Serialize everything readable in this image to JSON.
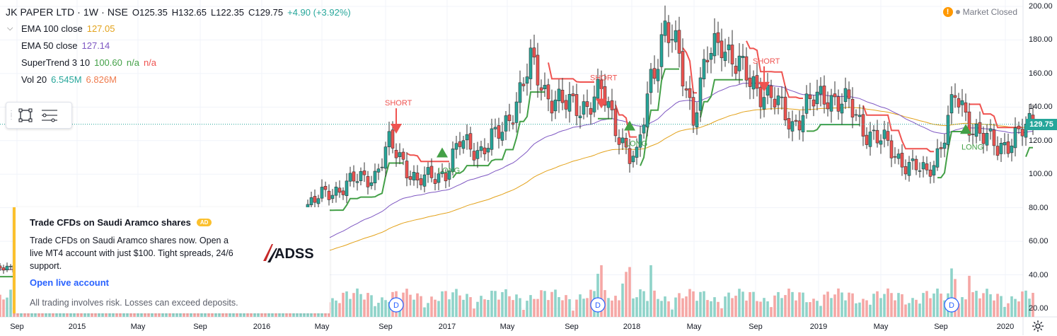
{
  "header": {
    "symbol": "JK PAPER LTD · 1W · NSE",
    "open": "O125.35",
    "high": "H132.65",
    "low": "L122.35",
    "close": "C129.75",
    "change": "+4.90 (+3.92%)"
  },
  "indicators": [
    {
      "name": "EMA 100 close",
      "value": "127.05",
      "value2": "",
      "value3": "",
      "color": "#e3a21a"
    },
    {
      "name": "EMA 50 close",
      "value": "127.14",
      "value2": "",
      "value3": "",
      "color": "#7e57c2"
    },
    {
      "name": "SuperTrend 3 10",
      "value": "100.60",
      "value2": "n/a",
      "value3": "n/a",
      "color": "#43a047"
    },
    {
      "name": "Vol 20",
      "value": "6.545M",
      "value2": "6.826M",
      "value3": "",
      "color": "#26a69a"
    }
  ],
  "market_status": "Market Closed",
  "price_badge": "129.75",
  "ad": {
    "title": "Trade CFDs on Saudi Aramco shares",
    "badge": "AD",
    "body": "Trade CFDs on Saudi Aramco shares now. Open a live MT4 account with just $100. Tight spreads, 24/6 support.",
    "link": "Open live account",
    "disclaimer": "All trading involves risk. Losses can exceed deposits.",
    "logo_text": "ADSS"
  },
  "chart_data": {
    "type": "candlestick",
    "y_axis_ticks": [
      "200.00",
      "180.00",
      "160.00",
      "140.00",
      "120.00",
      "100.00",
      "80.00",
      "60.00",
      "40.00",
      "20.00"
    ],
    "ylim": [
      20,
      200
    ],
    "x_axis_labels": [
      "Sep",
      "2015",
      "May",
      "Sep",
      "2016",
      "May",
      "Sep",
      "2017",
      "May",
      "Sep",
      "2018",
      "May",
      "Sep",
      "2019",
      "May",
      "Sep",
      "2020"
    ],
    "last_close": 129.75,
    "signals": [
      {
        "label": "SHORT",
        "type": "short",
        "week": 114,
        "price": 130
      },
      {
        "label": "LONG",
        "type": "long",
        "week": 127,
        "price": 110
      },
      {
        "label": "SHORT",
        "type": "short",
        "week": 172,
        "price": 145
      },
      {
        "label": "LONG",
        "type": "long",
        "week": 180,
        "price": 126
      },
      {
        "label": "SHORT",
        "type": "short",
        "week": 218,
        "price": 155
      },
      {
        "label": "LONG",
        "type": "long",
        "week": 275,
        "price": 124
      }
    ],
    "dividend_marker": "D",
    "dividend_weeks": [
      86,
      114,
      171,
      271
    ],
    "anchors": [
      [
        0,
        43
      ],
      [
        8,
        44
      ],
      [
        16,
        43
      ],
      [
        24,
        44
      ],
      [
        32,
        42
      ],
      [
        40,
        41
      ],
      [
        48,
        42
      ],
      [
        56,
        46
      ],
      [
        64,
        51
      ],
      [
        72,
        54
      ],
      [
        80,
        57
      ],
      [
        84,
        63
      ],
      [
        88,
        80
      ],
      [
        94,
        88
      ],
      [
        100,
        94
      ],
      [
        108,
        100
      ],
      [
        112,
        117
      ],
      [
        116,
        108
      ],
      [
        120,
        95
      ],
      [
        124,
        98
      ],
      [
        128,
        102
      ],
      [
        132,
        118
      ],
      [
        138,
        115
      ],
      [
        144,
        125
      ],
      [
        148,
        145
      ],
      [
        152,
        165
      ],
      [
        156,
        150
      ],
      [
        162,
        140
      ],
      [
        168,
        142
      ],
      [
        172,
        148
      ],
      [
        176,
        130
      ],
      [
        180,
        110
      ],
      [
        182,
        108
      ],
      [
        186,
        160
      ],
      [
        190,
        185
      ],
      [
        194,
        170
      ],
      [
        198,
        135
      ],
      [
        202,
        168
      ],
      [
        206,
        182
      ],
      [
        210,
        165
      ],
      [
        214,
        155
      ],
      [
        218,
        150
      ],
      [
        222,
        140
      ],
      [
        226,
        130
      ],
      [
        230,
        140
      ],
      [
        236,
        148
      ],
      [
        242,
        140
      ],
      [
        246,
        128
      ],
      [
        252,
        118
      ],
      [
        256,
        110
      ],
      [
        260,
        104
      ],
      [
        264,
        100
      ],
      [
        268,
        118
      ],
      [
        272,
        145
      ],
      [
        276,
        132
      ],
      [
        280,
        122
      ],
      [
        284,
        115
      ],
      [
        288,
        122
      ],
      [
        292,
        126
      ],
      [
        294,
        129.75
      ]
    ],
    "volume_axis_max": 70
  }
}
